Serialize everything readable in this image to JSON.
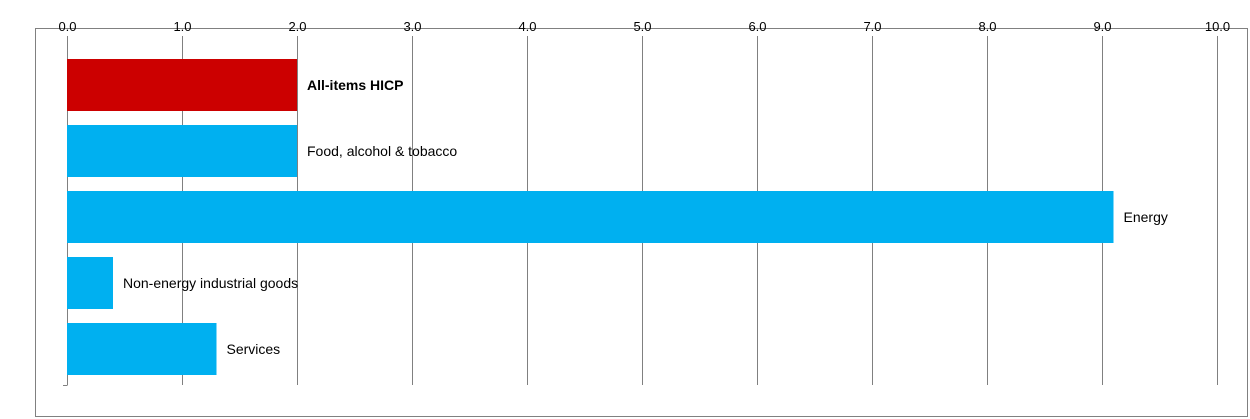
{
  "chart_data": {
    "type": "bar",
    "orientation": "horizontal",
    "title": "",
    "xlabel": "",
    "ylabel": "",
    "xlim": [
      0,
      10
    ],
    "x_ticks": [
      "0.0",
      "1.0",
      "2.0",
      "3.0",
      "4.0",
      "5.0",
      "6.0",
      "7.0",
      "8.0",
      "9.0",
      "10.0"
    ],
    "x_axis_position": "top",
    "grid": "vertical",
    "legend": "none",
    "categories": [
      "All-items HICP",
      "Food, alcohol & tobacco",
      "Energy",
      "Non-energy industrial goods",
      "Services"
    ],
    "values": [
      2.0,
      2.0,
      9.1,
      0.4,
      1.3
    ],
    "highlight_category": "All-items HICP",
    "colors": {
      "highlight": "#cc0000",
      "bar": "#00b0f0",
      "grid": "#808080",
      "axis": "#808080"
    }
  }
}
